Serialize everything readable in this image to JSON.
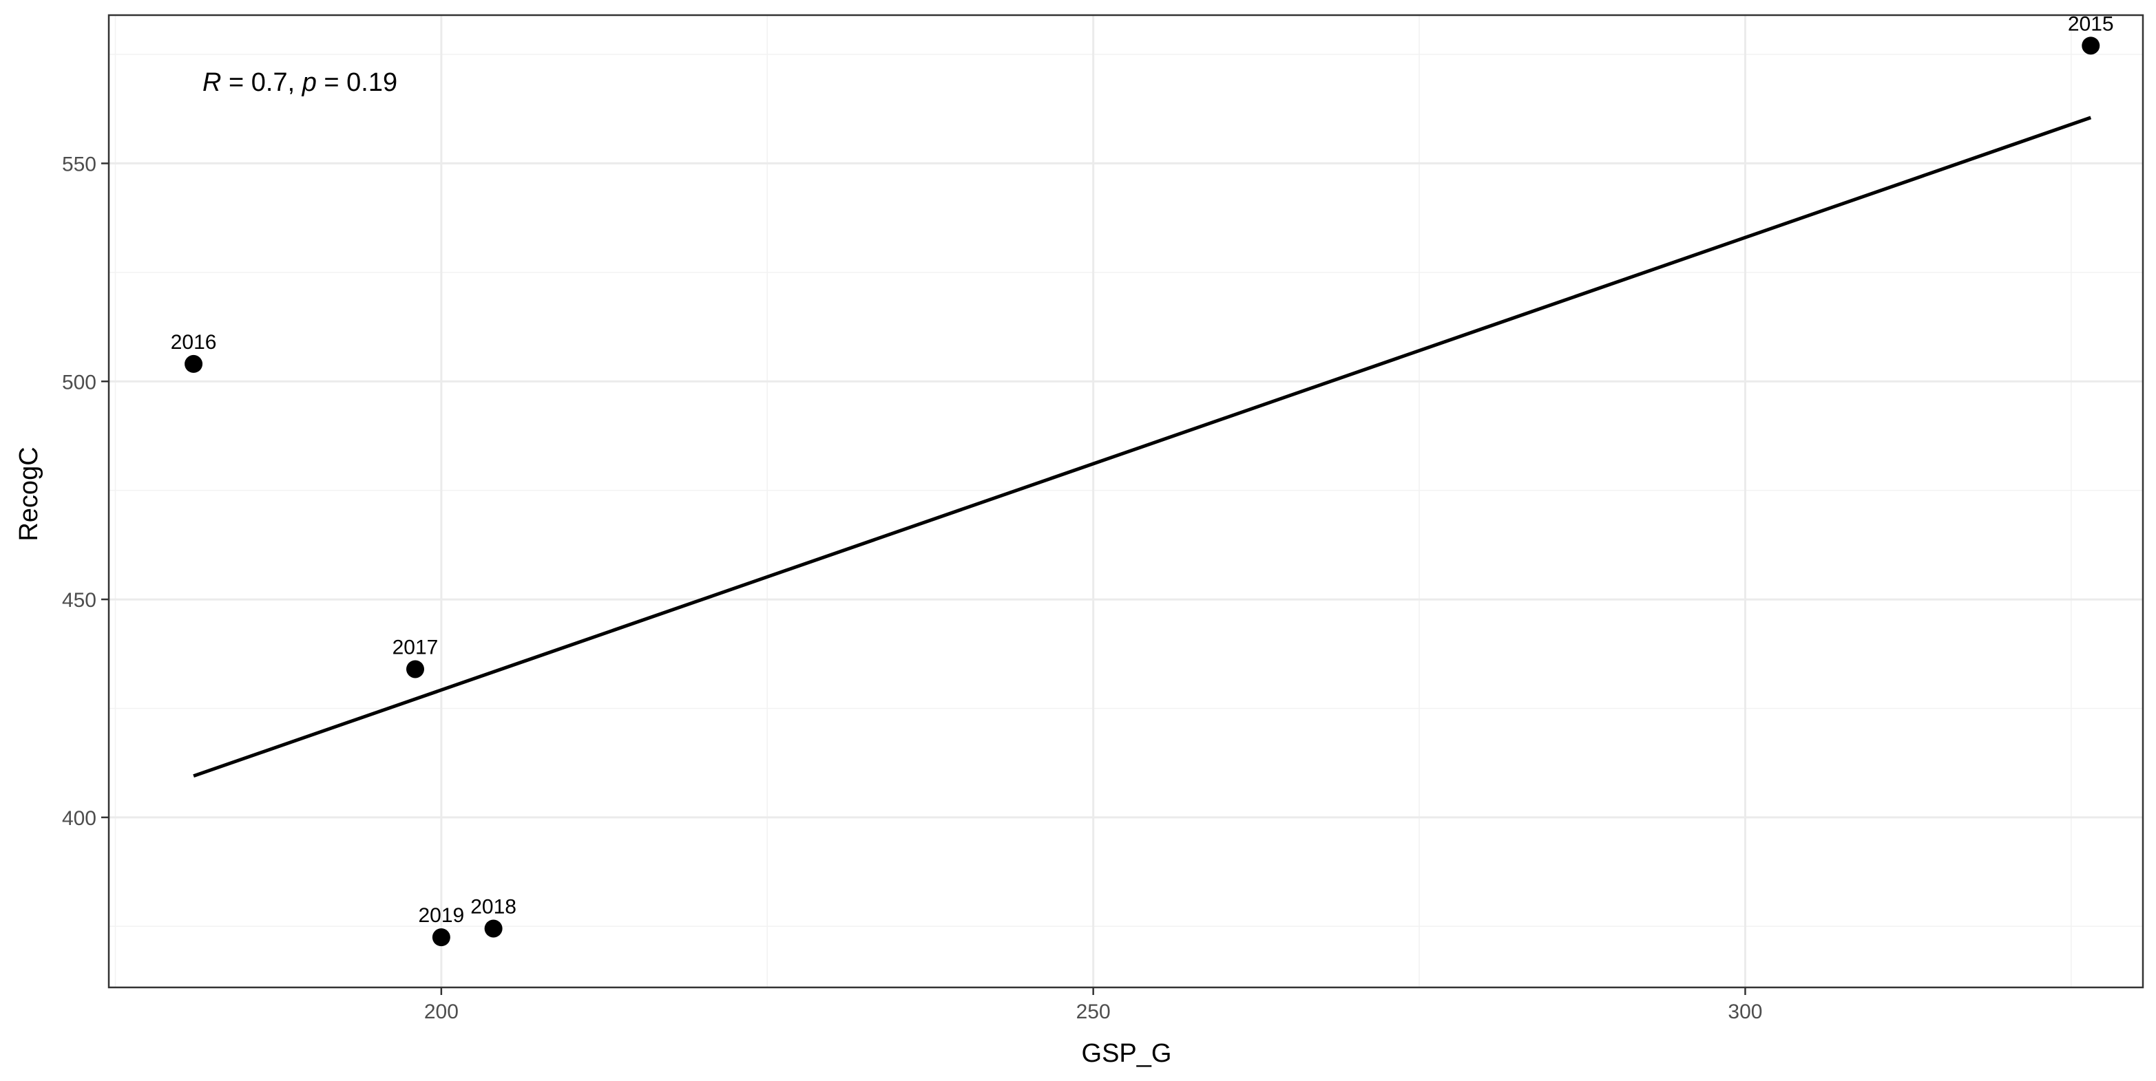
{
  "chart_data": {
    "type": "scatter",
    "xlabel": "GSP_G",
    "ylabel": "RecogC",
    "xlim": [
      174.5,
      330.5
    ],
    "ylim": [
      361,
      584
    ],
    "x_ticks": [
      200,
      250,
      300
    ],
    "x_tick_labels": [
      "200",
      "250",
      "300"
    ],
    "x_minor_ticks": [
      175,
      225,
      275,
      325
    ],
    "y_ticks": [
      400,
      450,
      500,
      550
    ],
    "y_tick_labels": [
      "400",
      "450",
      "500",
      "550"
    ],
    "y_minor_ticks": [
      375,
      425,
      475,
      525,
      575
    ],
    "grid": true,
    "points": [
      {
        "label": "2015",
        "x": 326.5,
        "y": 577
      },
      {
        "label": "2016",
        "x": 181.0,
        "y": 504
      },
      {
        "label": "2017",
        "x": 198.0,
        "y": 434
      },
      {
        "label": "2018",
        "x": 204.0,
        "y": 374.5
      },
      {
        "label": "2019",
        "x": 200.0,
        "y": 372.5
      }
    ],
    "regression_line": {
      "x": [
        181.0,
        326.5
      ],
      "y": [
        409.5,
        560.5
      ]
    },
    "annotation": {
      "r_symbol": "R",
      "r_value": " = 0.7, ",
      "p_symbol": "p",
      "p_value": " = 0.19"
    },
    "colors": {
      "points": "#000000",
      "line": "#000000",
      "grid": "#ebebeb",
      "panel_border": "#333333"
    }
  }
}
